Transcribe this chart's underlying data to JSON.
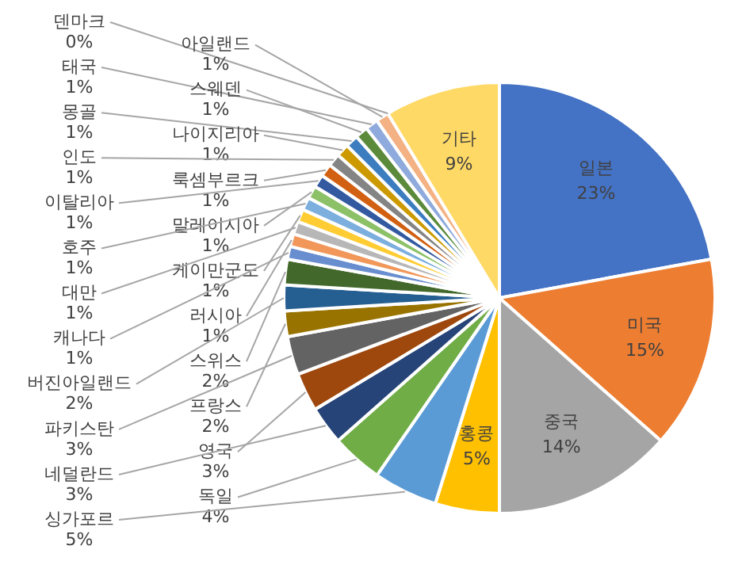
{
  "chart_data": {
    "type": "pie",
    "legend": false,
    "categories": [
      "일본",
      "미국",
      "중국",
      "홍콩",
      "싱가포르",
      "독일",
      "네덜란드",
      "영국",
      "파키스탄",
      "프랑스",
      "버진아일랜드",
      "스위스",
      "캐나다",
      "러시아",
      "대만",
      "케이만군도",
      "호주",
      "말레이시아",
      "이탈리아",
      "룩셈부르크",
      "인도",
      "나이지리아",
      "몽골",
      "스웨덴",
      "태국",
      "아일랜드",
      "덴마크",
      "기타"
    ],
    "values": [
      23,
      15,
      14,
      5,
      5,
      4,
      3,
      3,
      3,
      2,
      2,
      2,
      1,
      1,
      1,
      1,
      1,
      1,
      1,
      1,
      1,
      1,
      1,
      1,
      1,
      1,
      0,
      9
    ],
    "value_labels": [
      "23%",
      "15%",
      "14%",
      "5%",
      "5%",
      "4%",
      "3%",
      "3%",
      "3%",
      "2%",
      "2%",
      "2%",
      "1%",
      "1%",
      "1%",
      "1%",
      "1%",
      "1%",
      "1%",
      "1%",
      "1%",
      "1%",
      "1%",
      "1%",
      "1%",
      "1%",
      "0%",
      "9%"
    ],
    "colors": [
      "#4472c4",
      "#ed7d31",
      "#a5a5a5",
      "#ffc000",
      "#5b9bd5",
      "#70ad47",
      "#264478",
      "#9e480e",
      "#636363",
      "#997300",
      "#255e91",
      "#43682b",
      "#698ed0",
      "#f1975a",
      "#b7b7b7",
      "#ffcd33",
      "#7cafdd",
      "#8cc168",
      "#335aa1",
      "#d26012",
      "#848484",
      "#cc9a00",
      "#3c7dc0",
      "#5a8a3a",
      "#8faadc",
      "#f4b183",
      "#c9c9c9",
      "#ffd966"
    ]
  }
}
